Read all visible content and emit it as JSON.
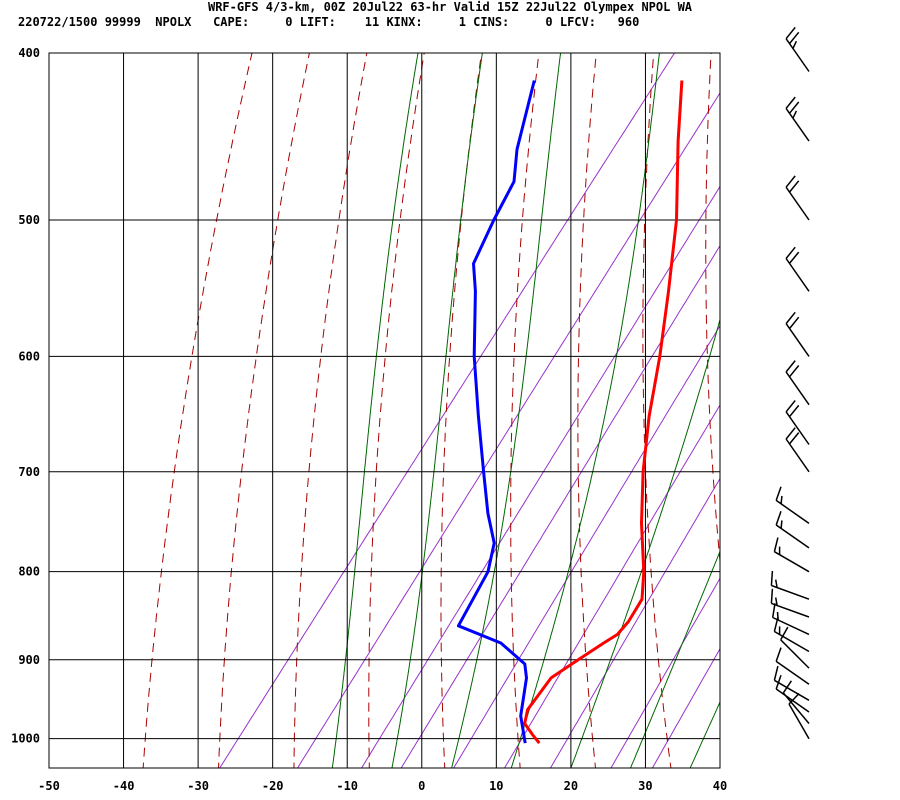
{
  "header": {
    "title": "WRF-GFS 4/3-km, 00Z 20Jul22 63-hr Valid 15Z 22Jul22 Olympex NPOL WA",
    "stats": "220722/1500 99999  NPOLX   CAPE:     0 LIFT:    11 KINX:     1 CINS:     0 LFCV:   960"
  },
  "colors": {
    "temperature": "#ff0000",
    "dewpoint": "#0000ff",
    "dry_adiabat": "#aa0000",
    "moist_adiabat": "#006600",
    "mixing_ratio": "#9933cc",
    "grid": "#000000",
    "barb": "#000000"
  },
  "chart_data": {
    "type": "line",
    "subtype": "skew-T log-P sounding",
    "title": "WRF-GFS 4/3-km, 00Z 20Jul22 63-hr Valid 15Z 22Jul22 Olympex NPOL WA",
    "xlabel": "",
    "ylabel": "",
    "x_range": [
      -50,
      40
    ],
    "x_ticks": [
      -50,
      -40,
      -30,
      -20,
      -10,
      0,
      10,
      20,
      30,
      40
    ],
    "y_scale": "log",
    "y_range": [
      1040,
      400
    ],
    "y_ticks": [
      400,
      500,
      600,
      700,
      800,
      900,
      1000
    ],
    "grid": true,
    "series": [
      {
        "key": "temperature",
        "values": [
          [
            1006,
            13.3
          ],
          [
            995,
            11.6
          ],
          [
            980,
            9.4
          ],
          [
            962,
            8.4
          ],
          [
            922,
            8.4
          ],
          [
            905,
            9.8
          ],
          [
            880,
            12
          ],
          [
            870,
            13
          ],
          [
            855,
            13.2
          ],
          [
            830,
            12.8
          ],
          [
            800,
            10.3
          ],
          [
            750,
            5.2
          ],
          [
            700,
            0.3
          ],
          [
            650,
            -4.4
          ],
          [
            600,
            -8.9
          ],
          [
            550,
            -14.2
          ],
          [
            500,
            -20.2
          ],
          [
            450,
            -27.8
          ],
          [
            415,
            -33.3
          ]
        ]
      },
      {
        "key": "dewpoint",
        "values": [
          [
            1006,
            11.4
          ],
          [
            970,
            8.1
          ],
          [
            922,
            5.1
          ],
          [
            905,
            3.5
          ],
          [
            880,
            -1.8
          ],
          [
            860,
            -9.2
          ],
          [
            800,
            -10.6
          ],
          [
            770,
            -12.6
          ],
          [
            740,
            -16.4
          ],
          [
            700,
            -21.1
          ],
          [
            650,
            -27.3
          ],
          [
            600,
            -33.8
          ],
          [
            550,
            -40.1
          ],
          [
            530,
            -43.1
          ],
          [
            500,
            -44.7
          ],
          [
            475,
            -45.8
          ],
          [
            455,
            -48.6
          ],
          [
            415,
            -53.1
          ]
        ]
      }
    ],
    "wind_barbs": [
      {
        "p": 1000,
        "dir": 330,
        "speed": 10
      },
      {
        "p": 980,
        "dir": 320,
        "speed": 10
      },
      {
        "p": 965,
        "dir": 305,
        "speed": 10
      },
      {
        "p": 950,
        "dir": 300,
        "speed": 10
      },
      {
        "p": 930,
        "dir": 305,
        "speed": 10
      },
      {
        "p": 910,
        "dir": 315,
        "speed": 10
      },
      {
        "p": 890,
        "dir": 300,
        "speed": 15
      },
      {
        "p": 870,
        "dir": 295,
        "speed": 15
      },
      {
        "p": 850,
        "dir": 290,
        "speed": 15
      },
      {
        "p": 830,
        "dir": 290,
        "speed": 15
      },
      {
        "p": 800,
        "dir": 300,
        "speed": 15
      },
      {
        "p": 775,
        "dir": 305,
        "speed": 15
      },
      {
        "p": 750,
        "dir": 305,
        "speed": 15
      },
      {
        "p": 700,
        "dir": 325,
        "speed": 20
      },
      {
        "p": 675,
        "dir": 325,
        "speed": 20
      },
      {
        "p": 640,
        "dir": 325,
        "speed": 20
      },
      {
        "p": 600,
        "dir": 325,
        "speed": 20
      },
      {
        "p": 550,
        "dir": 325,
        "speed": 20
      },
      {
        "p": 500,
        "dir": 325,
        "speed": 20
      },
      {
        "p": 450,
        "dir": 325,
        "speed": 25
      },
      {
        "p": 410,
        "dir": 325,
        "speed": 25
      }
    ]
  }
}
